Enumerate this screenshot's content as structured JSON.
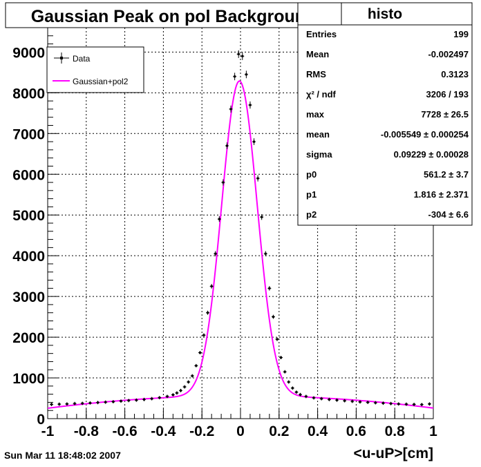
{
  "title": "Gaussian Peak on pol Background",
  "xlabel": "<u-uP>[cm]",
  "footer_date": "Sun Mar 11 18:48:02 2007",
  "colors": {
    "data": "#000000",
    "fit": "#ff00ff",
    "grid": "#000000",
    "frame": "#000000"
  },
  "stats": {
    "title": "histo",
    "rows": [
      {
        "label": "Entries",
        "value": "199"
      },
      {
        "label": "Mean",
        "value": "-0.002497"
      },
      {
        "label": "RMS",
        "value": "0.3123"
      },
      {
        "label": "χ² / ndf",
        "value": "3206 / 193"
      },
      {
        "label": "max",
        "value": "7728 ± 26.5"
      },
      {
        "label": "mean",
        "value": "-0.005549 ± 0.000254"
      },
      {
        "label": "sigma",
        "value": "0.09229 ± 0.00028"
      },
      {
        "label": "p0",
        "value": "561.2 ± 3.7"
      },
      {
        "label": "p1",
        "value": "1.816 ± 2.371"
      },
      {
        "label": "p2",
        "value": "-304 ± 6.6"
      }
    ]
  },
  "chart_data": {
    "type": "scatter",
    "title": "Gaussian Peak on pol Background",
    "xlabel": "<u-uP>[cm]",
    "ylabel": "",
    "xlim": [
      -1,
      1
    ],
    "ylim": [
      0,
      9600
    ],
    "grid": true,
    "legend_position": "top-left",
    "xticks": [
      -1,
      -0.8,
      -0.6,
      -0.4,
      -0.2,
      0,
      0.2,
      0.4,
      0.6,
      0.8,
      1
    ],
    "xtick_labels": [
      "-1",
      "-0.8",
      "-0.6",
      "-0.4",
      "-0.2",
      "0",
      "0.2",
      "0.4",
      "0.6",
      "0.8",
      "1"
    ],
    "yticks": [
      0,
      1000,
      2000,
      3000,
      4000,
      5000,
      6000,
      7000,
      8000,
      9000
    ],
    "ytick_labels": [
      "0",
      "1000",
      "2000",
      "3000",
      "4000",
      "5000",
      "6000",
      "7000",
      "8000",
      "9000"
    ],
    "series": [
      {
        "name": "Data",
        "style": "points-with-error-bars",
        "points": [
          [
            -0.98,
            350
          ],
          [
            -0.94,
            355
          ],
          [
            -0.9,
            360
          ],
          [
            -0.86,
            370
          ],
          [
            -0.82,
            375
          ],
          [
            -0.78,
            385
          ],
          [
            -0.74,
            395
          ],
          [
            -0.7,
            405
          ],
          [
            -0.66,
            415
          ],
          [
            -0.62,
            430
          ],
          [
            -0.58,
            445
          ],
          [
            -0.54,
            455
          ],
          [
            -0.5,
            470
          ],
          [
            -0.46,
            490
          ],
          [
            -0.42,
            515
          ],
          [
            -0.38,
            545
          ],
          [
            -0.35,
            585
          ],
          [
            -0.33,
            630
          ],
          [
            -0.31,
            690
          ],
          [
            -0.29,
            780
          ],
          [
            -0.27,
            900
          ],
          [
            -0.25,
            1050
          ],
          [
            -0.23,
            1300
          ],
          [
            -0.21,
            1620
          ],
          [
            -0.19,
            2050
          ],
          [
            -0.17,
            2600
          ],
          [
            -0.15,
            3250
          ],
          [
            -0.13,
            4050
          ],
          [
            -0.11,
            4900
          ],
          [
            -0.09,
            5800
          ],
          [
            -0.07,
            6700
          ],
          [
            -0.05,
            7600
          ],
          [
            -0.03,
            8400
          ],
          [
            -0.01,
            8950
          ],
          [
            0.01,
            8900
          ],
          [
            0.03,
            8450
          ],
          [
            0.05,
            7700
          ],
          [
            0.07,
            6800
          ],
          [
            0.09,
            5900
          ],
          [
            0.11,
            4950
          ],
          [
            0.13,
            4050
          ],
          [
            0.15,
            3200
          ],
          [
            0.17,
            2500
          ],
          [
            0.19,
            1950
          ],
          [
            0.21,
            1500
          ],
          [
            0.23,
            1150
          ],
          [
            0.25,
            900
          ],
          [
            0.27,
            750
          ],
          [
            0.29,
            650
          ],
          [
            0.31,
            590
          ],
          [
            0.34,
            545
          ],
          [
            0.38,
            510
          ],
          [
            0.42,
            490
          ],
          [
            0.46,
            470
          ],
          [
            0.5,
            455
          ],
          [
            0.54,
            440
          ],
          [
            0.58,
            425
          ],
          [
            0.62,
            410
          ],
          [
            0.66,
            400
          ],
          [
            0.7,
            390
          ],
          [
            0.74,
            380
          ],
          [
            0.78,
            370
          ],
          [
            0.82,
            360
          ],
          [
            0.86,
            355
          ],
          [
            0.9,
            350
          ],
          [
            0.94,
            345
          ],
          [
            0.98,
            360
          ]
        ]
      },
      {
        "name": "Gaussian+pol2",
        "style": "line",
        "function": "max*exp(-0.5*((x-mean)/sigma)^2) + p0 + p1*x + p2*x^2",
        "params": {
          "max": 7728,
          "mean": -0.005549,
          "sigma": 0.09229,
          "p0": 561.2,
          "p1": 1.816,
          "p2": -304
        }
      }
    ]
  }
}
